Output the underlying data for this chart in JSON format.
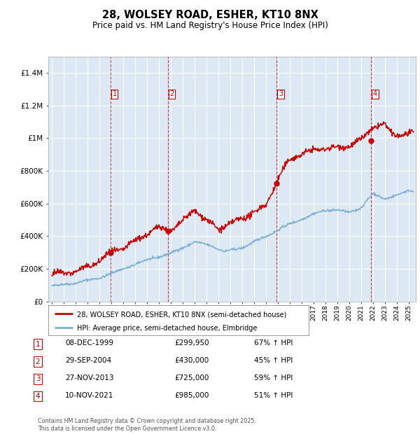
{
  "title": "28, WOLSEY ROAD, ESHER, KT10 8NX",
  "subtitle": "Price paid vs. HM Land Registry's House Price Index (HPI)",
  "red_label": "28, WOLSEY ROAD, ESHER, KT10 8NX (semi-detached house)",
  "blue_label": "HPI: Average price, semi-detached house, Elmbridge",
  "background_color": "#ffffff",
  "plot_bg_color": "#dce9f5",
  "grid_color": "#ffffff",
  "red_color": "#cc0000",
  "blue_color": "#7bafd4",
  "purchases": [
    {
      "num": 1,
      "date": "08-DEC-1999",
      "price": 299950,
      "pct": "67% ↑ HPI",
      "year_dec": 1999.94
    },
    {
      "num": 2,
      "date": "29-SEP-2004",
      "price": 430000,
      "pct": "45% ↑ HPI",
      "year_dec": 2004.75
    },
    {
      "num": 3,
      "date": "27-NOV-2013",
      "price": 725000,
      "pct": "59% ↑ HPI",
      "year_dec": 2013.91
    },
    {
      "num": 4,
      "date": "10-NOV-2021",
      "price": 985000,
      "pct": "51% ↑ HPI",
      "year_dec": 2021.86
    }
  ],
  "ylim": [
    0,
    1500000
  ],
  "xlim_start": 1994.7,
  "xlim_end": 2025.6,
  "yticks": [
    0,
    200000,
    400000,
    600000,
    800000,
    1000000,
    1200000,
    1400000
  ],
  "ytick_labels": [
    "£0",
    "£200K",
    "£400K",
    "£600K",
    "£800K",
    "£1M",
    "£1.2M",
    "£1.4M"
  ],
  "footer": "Contains HM Land Registry data © Crown copyright and database right 2025.\nThis data is licensed under the Open Government Licence v3.0.",
  "dpi": 100,
  "fig_width": 6.0,
  "fig_height": 6.2
}
